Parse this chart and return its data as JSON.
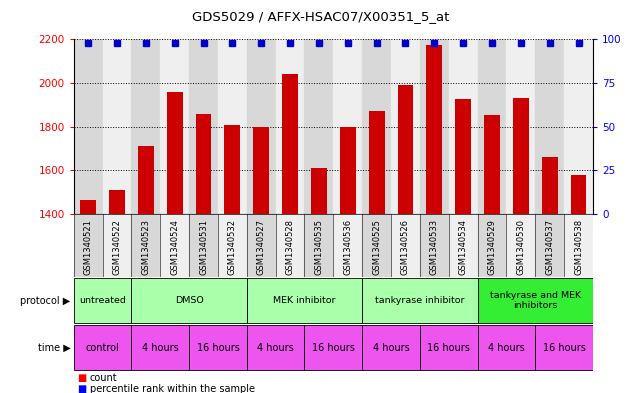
{
  "title": "GDS5029 / AFFX-HSAC07/X00351_5_at",
  "samples": [
    "GSM1340521",
    "GSM1340522",
    "GSM1340523",
    "GSM1340524",
    "GSM1340531",
    "GSM1340532",
    "GSM1340527",
    "GSM1340528",
    "GSM1340535",
    "GSM1340536",
    "GSM1340525",
    "GSM1340526",
    "GSM1340533",
    "GSM1340534",
    "GSM1340529",
    "GSM1340530",
    "GSM1340537",
    "GSM1340538"
  ],
  "counts": [
    1465,
    1510,
    1710,
    1960,
    1860,
    1810,
    1800,
    2040,
    1610,
    1800,
    1870,
    1990,
    2175,
    1925,
    1855,
    1930,
    1660,
    1580
  ],
  "bar_color": "#cc0000",
  "dot_color": "#0000cc",
  "ylim_left": [
    1400,
    2200
  ],
  "ylim_right": [
    0,
    100
  ],
  "yticks_left": [
    1400,
    1600,
    1800,
    2000,
    2200
  ],
  "yticks_right": [
    0,
    25,
    50,
    75,
    100
  ],
  "protocol_spans": [
    {
      "label": "untreated",
      "start": 0,
      "end": 1,
      "color": "#aaffaa"
    },
    {
      "label": "DMSO",
      "start": 2,
      "end": 5,
      "color": "#aaffaa"
    },
    {
      "label": "MEK inhibitor",
      "start": 6,
      "end": 9,
      "color": "#aaffaa"
    },
    {
      "label": "tankyrase inhibitor",
      "start": 10,
      "end": 13,
      "color": "#aaffaa"
    },
    {
      "label": "tankyrase and MEK\ninhibitors",
      "start": 14,
      "end": 17,
      "color": "#33ee33"
    }
  ],
  "time_spans": [
    {
      "label": "control",
      "start": 0,
      "end": 1
    },
    {
      "label": "4 hours",
      "start": 2,
      "end": 3
    },
    {
      "label": "16 hours",
      "start": 4,
      "end": 5
    },
    {
      "label": "4 hours",
      "start": 6,
      "end": 7
    },
    {
      "label": "16 hours",
      "start": 8,
      "end": 9
    },
    {
      "label": "4 hours",
      "start": 10,
      "end": 11
    },
    {
      "label": "16 hours",
      "start": 12,
      "end": 13
    },
    {
      "label": "4 hours",
      "start": 14,
      "end": 15
    },
    {
      "label": "16 hours",
      "start": 16,
      "end": 17
    }
  ],
  "time_color": "#ee55ee",
  "col_colors": [
    "#d8d8d8",
    "#efefef"
  ],
  "background_color": "#ffffff"
}
